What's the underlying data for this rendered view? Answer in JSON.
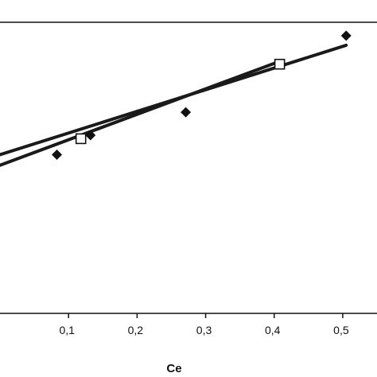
{
  "chart_data": {
    "type": "scatter",
    "xlabel": "Ce",
    "ylabel": "",
    "title": "",
    "x_ticks": [
      "0,1",
      "0,2",
      "0,3",
      "0,4",
      "0,5"
    ],
    "x_tick_values": [
      0.1,
      0.2,
      0.3,
      0.4,
      0.5
    ],
    "xlim": [
      0.0,
      0.55
    ],
    "ylim": [
      0.0,
      1.0
    ],
    "grid": false,
    "series": [
      {
        "marker": "filled-diamond",
        "points": [
          {
            "x": 0.083,
            "y": 0.545
          },
          {
            "x": 0.132,
            "y": 0.612
          },
          {
            "x": 0.271,
            "y": 0.691
          },
          {
            "x": 0.505,
            "y": 0.954
          }
        ],
        "fit_line": {
          "x": [
            0.0,
            0.505
          ],
          "y": [
            0.545,
            0.921
          ]
        }
      },
      {
        "marker": "open-square",
        "points": [
          {
            "x": 0.118,
            "y": 0.6
          },
          {
            "x": 0.408,
            "y": 0.856
          }
        ],
        "fit_line": {
          "x": [
            0.0,
            0.405
          ],
          "y": [
            0.509,
            0.863
          ]
        }
      }
    ],
    "colors": {
      "line": "#1a1a1a",
      "marker": "#111111",
      "axis": "#111111",
      "background": "#ffffff"
    }
  }
}
